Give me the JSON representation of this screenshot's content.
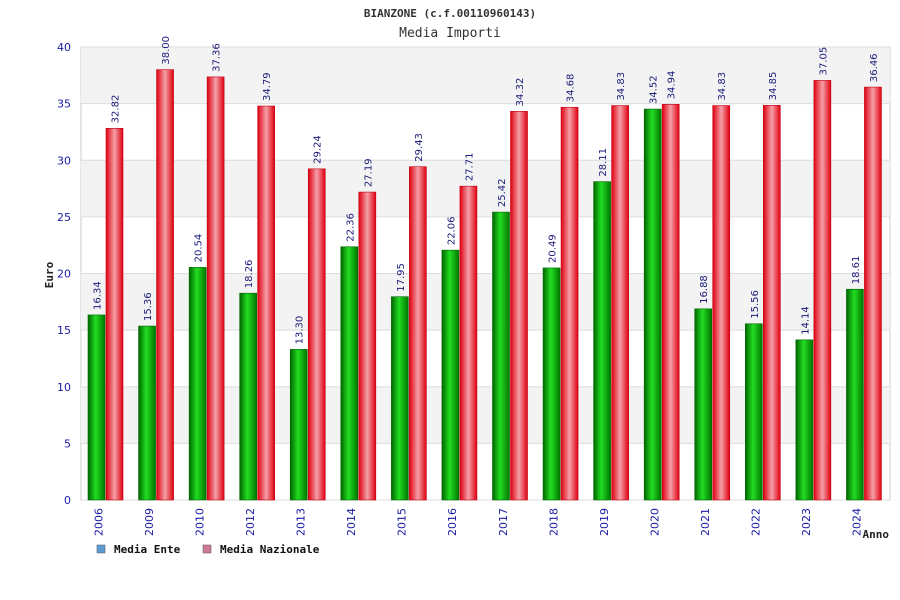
{
  "chart_data": {
    "type": "bar",
    "title": "BIANZONE (c.f.00110960143)",
    "subtitle": "Media Importi",
    "xlabel": "Anno",
    "ylabel": "Euro",
    "ylim": [
      0,
      40
    ],
    "yticks": [
      0,
      5,
      10,
      15,
      20,
      25,
      30,
      35,
      40
    ],
    "categories": [
      "2006",
      "2009",
      "2010",
      "2012",
      "2013",
      "2014",
      "2015",
      "2016",
      "2017",
      "2018",
      "2019",
      "2020",
      "2021",
      "2022",
      "2023",
      "2024"
    ],
    "series": [
      {
        "name": "Media Ente",
        "color": "#00b000",
        "legend_color": "#5b9bd5",
        "values": [
          16.34,
          15.36,
          20.54,
          18.26,
          13.3,
          22.36,
          17.95,
          22.06,
          25.42,
          20.49,
          28.11,
          34.52,
          16.88,
          15.56,
          14.14,
          18.61
        ],
        "labels": [
          "16.34",
          "15.36",
          "20.54",
          "18.26",
          "13.30",
          "22.36",
          "17.95",
          "22.06",
          "25.42",
          "20.49",
          "28.11",
          "34.52",
          "16.88",
          "15.56",
          "14.14",
          "18.61"
        ]
      },
      {
        "name": "Media Nazionale",
        "color": "#e8101c",
        "legend_color": "#d07a9a",
        "values": [
          32.82,
          38.0,
          37.36,
          34.79,
          29.24,
          27.19,
          29.43,
          27.71,
          34.32,
          34.68,
          34.83,
          34.94,
          34.83,
          34.85,
          37.05,
          36.46
        ],
        "labels": [
          "32.82",
          "38.00",
          "37.36",
          "34.79",
          "29.24",
          "27.19",
          "29.43",
          "27.71",
          "34.32",
          "34.68",
          "34.83",
          "34.94",
          "34.83",
          "34.85",
          "37.05",
          "36.46"
        ]
      }
    ],
    "grid": true,
    "legend_position": "bottom-left"
  }
}
